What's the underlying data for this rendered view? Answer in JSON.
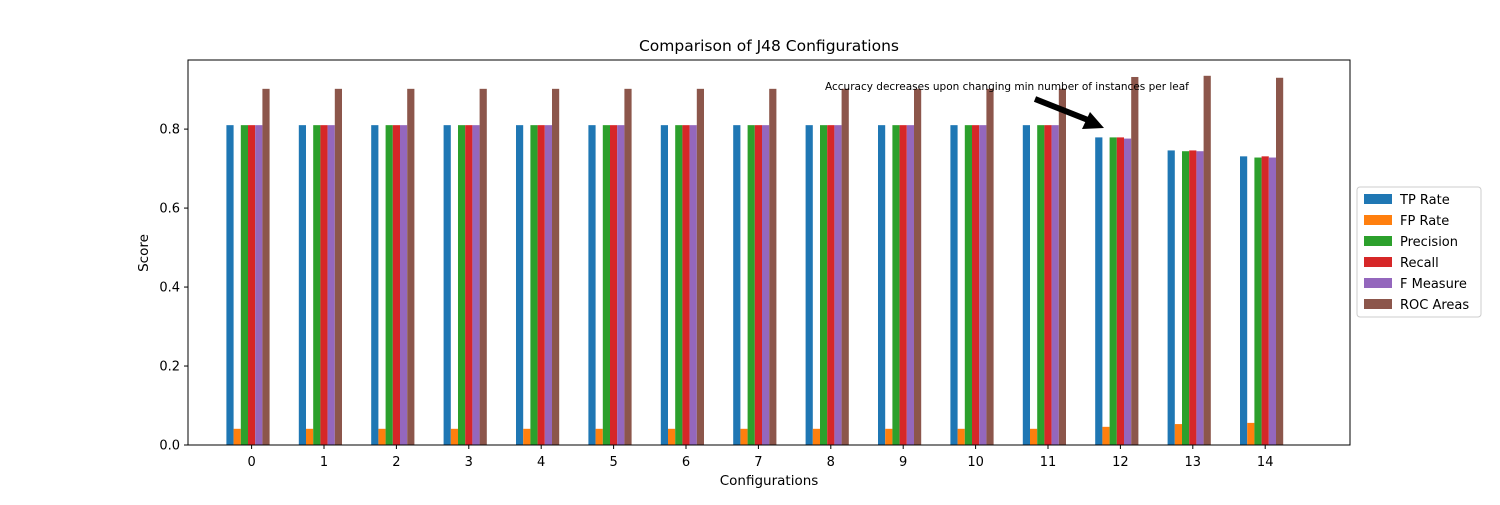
{
  "chart_data": {
    "type": "bar",
    "title": "Comparison of J48 Configurations",
    "xlabel": "Configurations",
    "ylabel": "Score",
    "categories": [
      "0",
      "1",
      "2",
      "3",
      "4",
      "5",
      "6",
      "7",
      "8",
      "9",
      "10",
      "11",
      "12",
      "13",
      "14"
    ],
    "ylim": [
      0,
      0.975
    ],
    "yticks": [
      "0.0",
      "0.2",
      "0.4",
      "0.6",
      "0.8"
    ],
    "grid": false,
    "legend_position": "right",
    "series": [
      {
        "name": "TP Rate",
        "color": "#1f77b4",
        "values": [
          0.81,
          0.81,
          0.81,
          0.81,
          0.81,
          0.81,
          0.81,
          0.81,
          0.81,
          0.81,
          0.81,
          0.81,
          0.779,
          0.746,
          0.731
        ]
      },
      {
        "name": "FP Rate",
        "color": "#ff7f0e",
        "values": [
          0.041,
          0.041,
          0.041,
          0.041,
          0.041,
          0.041,
          0.041,
          0.041,
          0.041,
          0.041,
          0.041,
          0.041,
          0.046,
          0.053,
          0.056
        ]
      },
      {
        "name": "Precision",
        "color": "#2ca02c",
        "values": [
          0.81,
          0.81,
          0.81,
          0.81,
          0.81,
          0.81,
          0.81,
          0.81,
          0.81,
          0.81,
          0.81,
          0.81,
          0.779,
          0.744,
          0.728
        ]
      },
      {
        "name": "Recall",
        "color": "#d62728",
        "values": [
          0.81,
          0.81,
          0.81,
          0.81,
          0.81,
          0.81,
          0.81,
          0.81,
          0.81,
          0.81,
          0.81,
          0.81,
          0.779,
          0.746,
          0.731
        ]
      },
      {
        "name": "F Measure",
        "color": "#9467bd",
        "values": [
          0.81,
          0.81,
          0.81,
          0.81,
          0.81,
          0.81,
          0.81,
          0.81,
          0.81,
          0.81,
          0.81,
          0.81,
          0.776,
          0.744,
          0.728
        ]
      },
      {
        "name": "ROC Areas",
        "color": "#8c564b",
        "values": [
          0.902,
          0.902,
          0.902,
          0.902,
          0.902,
          0.902,
          0.902,
          0.902,
          0.902,
          0.902,
          0.902,
          0.902,
          0.932,
          0.935,
          0.93
        ]
      }
    ],
    "annotations": [
      {
        "text": "Accuracy decreases upon changing min number of instances per leaf",
        "arrow_target": {
          "x": 12,
          "y": 0.81
        }
      }
    ]
  }
}
